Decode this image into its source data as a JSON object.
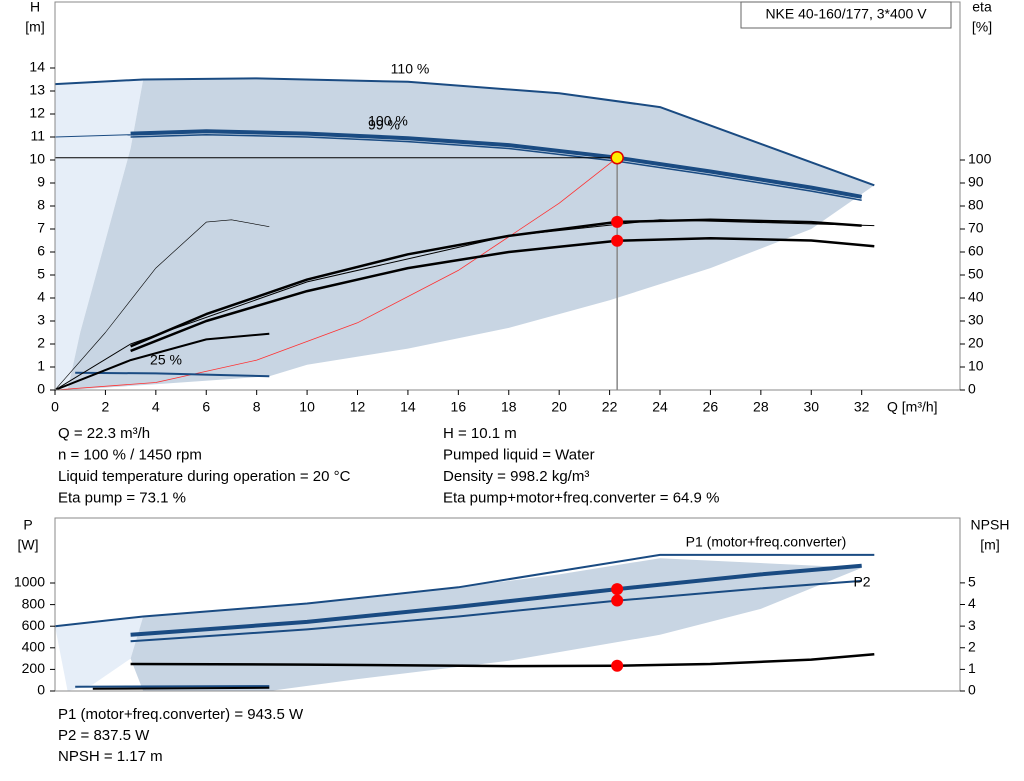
{
  "title_box": "NKE 40-160/177, 3*400 V",
  "info_left": [
    "Q = 22.3 m³/h",
    "n = 100 % / 1450 rpm",
    "Liquid temperature during operation = 20 °C",
    "Eta pump = 73.1 %"
  ],
  "info_right": [
    "H = 10.1 m",
    "Pumped liquid = Water",
    "Density = 998.2 kg/m³",
    "Eta pump+motor+freq.converter = 64.9 %"
  ],
  "info_bottom": [
    "P1 (motor+freq.converter) = 943.5 W",
    "P2 = 837.5 W",
    "NPSH = 1.17 m"
  ],
  "chart_data": [
    {
      "type": "line",
      "ylabel": "H",
      "yunit": "[m]",
      "y2label": "eta",
      "y2unit": "[%]",
      "xlabel": "Q [m³/h]",
      "xlim": [
        0,
        35.9
      ],
      "ylim": [
        0,
        16.87
      ],
      "y2lim": [
        0,
        168.7
      ],
      "xticks": [
        0,
        2,
        4,
        6,
        8,
        10,
        12,
        14,
        16,
        18,
        20,
        22,
        24,
        26,
        28,
        30,
        32
      ],
      "yticks": [
        0,
        1,
        2,
        3,
        4,
        5,
        6,
        7,
        8,
        9,
        10,
        11,
        12,
        13,
        14
      ],
      "y2ticks": [
        0,
        10,
        20,
        30,
        40,
        50,
        60,
        70,
        80,
        90,
        100
      ],
      "crosshair": true,
      "series": [
        {
          "style": "area",
          "color": "#e6eef8",
          "x": [
            0,
            3.5,
            3,
            2,
            1,
            0.5,
            0
          ],
          "values": [
            13.3,
            13.5,
            10.5,
            6.5,
            2.5,
            0,
            0
          ]
        },
        {
          "style": "area",
          "color": "#c8d5e3",
          "x": [
            3.5,
            8,
            14,
            20,
            24,
            32.5,
            30,
            26,
            22,
            18,
            14,
            10,
            8.5,
            4,
            0.5,
            1,
            2,
            3
          ],
          "values": [
            13.5,
            13.55,
            13.4,
            12.9,
            12.3,
            8.9,
            7,
            5.3,
            3.9,
            2.7,
            1.8,
            1.1,
            0.6,
            0.25,
            0,
            2.5,
            6.5,
            10.5
          ]
        },
        {
          "name": "110 %",
          "color": "#1a4b82",
          "width": 2,
          "x": [
            0,
            3.5,
            8,
            14,
            20,
            24,
            32.5
          ],
          "values": [
            13.3,
            13.5,
            13.55,
            13.4,
            12.9,
            12.3,
            8.9
          ]
        },
        {
          "color": "#1a4b82",
          "width": 1,
          "x": [
            0,
            3
          ],
          "values": [
            11.0,
            11.1
          ]
        },
        {
          "name": "100 %",
          "color": "#1a4b82",
          "width": 4,
          "x": [
            3,
            6,
            10,
            14,
            18,
            22.3,
            26,
            30,
            32
          ],
          "values": [
            11.15,
            11.25,
            11.15,
            10.95,
            10.65,
            10.1,
            9.5,
            8.8,
            8.4
          ]
        },
        {
          "name": "99 %",
          "color": "#1a4b82",
          "width": 1.5,
          "x": [
            3,
            6,
            10,
            14,
            18,
            22.3,
            26,
            30,
            32
          ],
          "values": [
            11.0,
            11.1,
            11.0,
            10.8,
            10.5,
            9.95,
            9.35,
            8.65,
            8.25
          ]
        },
        {
          "color": "#ff3030",
          "width": 0.8,
          "x": [
            0,
            4,
            8,
            12,
            16,
            20,
            22.3
          ],
          "values": [
            0,
            0.325,
            1.3,
            2.92,
            5.2,
            8.12,
            10.1
          ]
        },
        {
          "name": "25 %",
          "color": "#1a4b82",
          "width": 2,
          "x": [
            0.8,
            4,
            8.5
          ],
          "values": [
            0.75,
            0.72,
            0.6
          ]
        },
        {
          "axis": "y2",
          "color": "#000000",
          "width": 0.6,
          "x": [
            0,
            2,
            4,
            6,
            7,
            8.5
          ],
          "values": [
            0,
            25,
            53,
            73,
            74,
            71
          ]
        },
        {
          "axis": "y2",
          "color": "#000000",
          "width": 2,
          "x": [
            0,
            3,
            6,
            8.5
          ],
          "values": [
            0,
            13,
            22,
            24.5
          ]
        },
        {
          "axis": "y2",
          "color": "#000000",
          "width": 1,
          "x": [
            0,
            3,
            10,
            18,
            24,
            32.5
          ],
          "values": [
            0,
            20,
            47,
            67,
            74,
            71.5
          ]
        },
        {
          "axis": "y2",
          "color": "#000000",
          "width": 2.5,
          "x": [
            3,
            6,
            10,
            14,
            18,
            22.3,
            26,
            30,
            32
          ],
          "values": [
            19,
            33,
            48,
            59,
            67,
            73.1,
            74,
            73,
            71.5
          ]
        },
        {
          "axis": "y2",
          "color": "#000000",
          "width": 2.5,
          "x": [
            3,
            6,
            10,
            14,
            18,
            22.3,
            26,
            30,
            32.5
          ],
          "values": [
            17,
            30,
            43,
            53,
            60,
            64.9,
            66,
            65,
            62.5
          ]
        }
      ],
      "points": [
        {
          "x": 22.3,
          "y": 10.1,
          "color": "#ffee00"
        },
        {
          "x": 22.3,
          "y": 73.1,
          "axis": "y2",
          "color": "#ff0000"
        },
        {
          "x": 22.3,
          "y": 64.9,
          "axis": "y2",
          "color": "#ff0000"
        }
      ]
    },
    {
      "type": "line",
      "ylabel": "P",
      "yunit": "[W]",
      "y2label": "NPSH",
      "y2unit": "[m]",
      "xlim": [
        0,
        35.9
      ],
      "ylim": [
        0,
        1602
      ],
      "y2lim": [
        0,
        8.0
      ],
      "yticks": [
        0,
        200,
        400,
        600,
        800,
        1000
      ],
      "y2ticks": [
        0,
        1,
        2,
        3,
        4,
        5
      ],
      "series": [
        {
          "style": "area",
          "color": "#e6eef8",
          "x": [
            0,
            3.5,
            3,
            1.5,
            0.5
          ],
          "values": [
            600,
            690,
            300,
            60,
            0
          ]
        },
        {
          "style": "area",
          "color": "#c8d5e3",
          "x": [
            3.5,
            10,
            16,
            20,
            24,
            32,
            28,
            24,
            18,
            12,
            8.5,
            3.5,
            3
          ],
          "values": [
            690,
            810,
            960,
            1080,
            1230,
            1140,
            760,
            520,
            280,
            110,
            0,
            0,
            300
          ]
        },
        {
          "name": "P1 (motor+freq.converter)",
          "color": "#1a4b82",
          "width": 2,
          "x": [
            0,
            3.5,
            10,
            16,
            24,
            32.5
          ],
          "values": [
            600,
            690,
            810,
            960,
            1260,
            1260
          ]
        },
        {
          "color": "#1a4b82",
          "width": 4,
          "x": [
            3,
            10,
            16,
            22.3,
            28,
            32
          ],
          "values": [
            520,
            640,
            780,
            943.5,
            1080,
            1160
          ]
        },
        {
          "name": "P2",
          "color": "#1a4b82",
          "width": 2,
          "x": [
            3,
            10,
            16,
            22.3,
            28,
            32
          ],
          "values": [
            460,
            570,
            690,
            837.5,
            950,
            1020
          ]
        },
        {
          "axis": "y2",
          "color": "#000000",
          "width": 2.5,
          "x": [
            3,
            10,
            18,
            22.3,
            26,
            30,
            32.5
          ],
          "values": [
            1.25,
            1.22,
            1.15,
            1.17,
            1.25,
            1.45,
            1.7
          ]
        },
        {
          "color": "#1a4b82",
          "width": 2,
          "x": [
            0.8,
            8.5
          ],
          "values": [
            40,
            45
          ]
        },
        {
          "color": "#000000",
          "width": 2,
          "x": [
            1.5,
            8.5
          ],
          "values": [
            20,
            30
          ]
        }
      ],
      "points": [
        {
          "x": 22.3,
          "y": 943.5,
          "color": "#ff0000"
        },
        {
          "x": 22.3,
          "y": 837.5,
          "color": "#ff0000"
        },
        {
          "x": 22.3,
          "y": 1.17,
          "axis": "y2",
          "color": "#ff0000"
        }
      ]
    }
  ]
}
